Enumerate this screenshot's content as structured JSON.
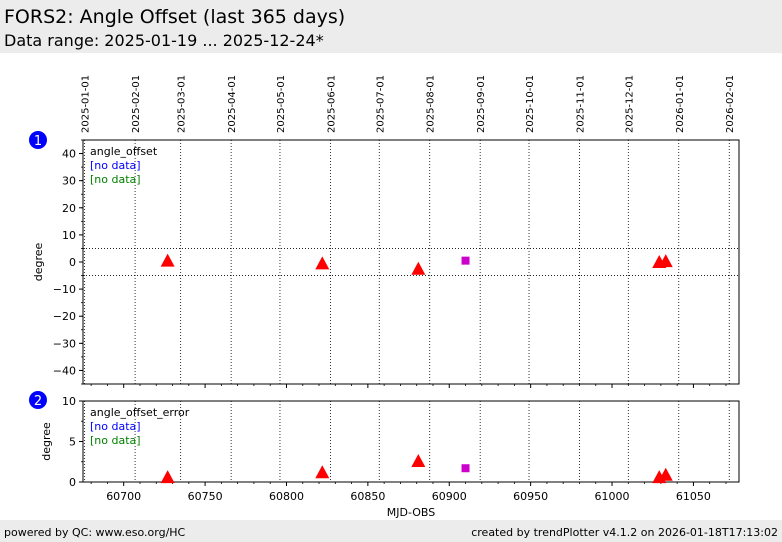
{
  "header": {
    "title": "FORS2: Angle Offset (last 365 days)",
    "subtitle": "Data range: 2025-01-19 ... 2025-12-24*"
  },
  "footer": {
    "left": "powered by QC: www.eso.org/HC",
    "right": "created by trendPlotter v4.1.2 on 2026-01-18T17:13:02"
  },
  "colors": {
    "marker_red": "#ff0000",
    "marker_magenta": "#cc00cc",
    "badge_blue": "#0000ff",
    "legend_blue": "#0000ff",
    "legend_green": "#008000"
  },
  "x_axis": {
    "label": "MJD-OBS",
    "range": [
      60675,
      61078
    ],
    "ticks": [
      60700,
      60750,
      60800,
      60850,
      60900,
      60950,
      61000,
      61050
    ],
    "tick_labels": [
      "60700",
      "60750",
      "60800",
      "60850",
      "60900",
      "60950",
      "61000",
      "61050"
    ],
    "date_ticks": [
      {
        "label": "2025-01-01",
        "mjd": 60676
      },
      {
        "label": "2025-02-01",
        "mjd": 60707
      },
      {
        "label": "2025-03-01",
        "mjd": 60735
      },
      {
        "label": "2025-04-01",
        "mjd": 60766
      },
      {
        "label": "2025-05-01",
        "mjd": 60796
      },
      {
        "label": "2025-06-01",
        "mjd": 60827
      },
      {
        "label": "2025-07-01",
        "mjd": 60857
      },
      {
        "label": "2025-08-01",
        "mjd": 60888
      },
      {
        "label": "2025-09-01",
        "mjd": 60919
      },
      {
        "label": "2025-10-01",
        "mjd": 60949
      },
      {
        "label": "2025-11-01",
        "mjd": 60980
      },
      {
        "label": "2025-12-01",
        "mjd": 61010
      },
      {
        "label": "2026-01-01",
        "mjd": 61041
      },
      {
        "label": "2026-02-01",
        "mjd": 61072
      }
    ]
  },
  "chart_data": [
    {
      "type": "scatter",
      "panel": "1",
      "ylabel": "degree",
      "ylim": [
        -45,
        45
      ],
      "yticks": [
        -40,
        -30,
        -20,
        -10,
        0,
        10,
        20,
        30,
        40
      ],
      "ytick_labels": [
        "−40",
        "−30",
        "−20",
        "−10",
        "0",
        "10",
        "20",
        "30",
        "40"
      ],
      "reference_lines": [
        5,
        -5
      ],
      "legend": [
        "angle_offset",
        "[no data]",
        "[no data]"
      ],
      "series": [
        {
          "marker": "triangle",
          "color": "#ff0000",
          "x": [
            60727,
            60822,
            60881,
            61029,
            61033
          ],
          "y": [
            0.5,
            -0.5,
            -2.5,
            0.0,
            0.3
          ]
        },
        {
          "marker": "square",
          "color": "#cc00cc",
          "x": [
            60910
          ],
          "y": [
            0.5
          ]
        }
      ]
    },
    {
      "type": "scatter",
      "panel": "2",
      "ylabel": "degree",
      "ylim": [
        0,
        10
      ],
      "yticks": [
        0,
        5,
        10
      ],
      "ytick_labels": [
        "0",
        "5",
        "10"
      ],
      "reference_lines": [],
      "legend": [
        "angle_offset_error",
        "[no data]",
        "[no data]"
      ],
      "series": [
        {
          "marker": "triangle",
          "color": "#ff0000",
          "x": [
            60727,
            60822,
            60881,
            61029,
            61033
          ],
          "y": [
            0.6,
            1.2,
            2.6,
            0.6,
            0.9
          ]
        },
        {
          "marker": "square",
          "color": "#cc00cc",
          "x": [
            60910
          ],
          "y": [
            1.7
          ]
        }
      ]
    }
  ]
}
